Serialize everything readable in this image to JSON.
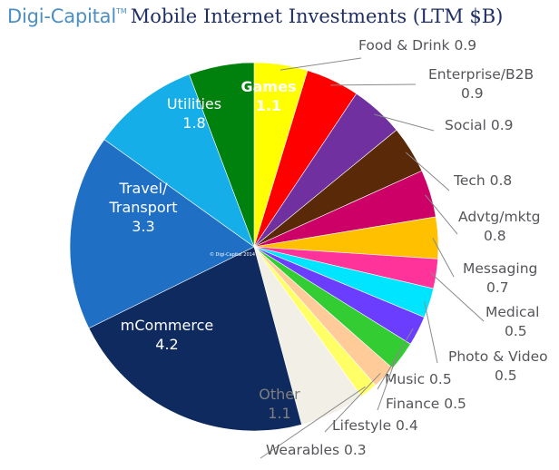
{
  "header": {
    "brand": "Digi-Capital",
    "trademark": "TM",
    "title": "Mobile Internet Investments (LTM $B)"
  },
  "watermark": "© Digi-Capital 2014",
  "chart_data": {
    "type": "pie",
    "title": "Mobile Internet Investments (LTM $B)",
    "start_angle_deg": 0,
    "direction": "clockwise",
    "slices": [
      {
        "label": "Food & Drink",
        "value": 0.9,
        "color": "#ffff00",
        "label_placement": "outside"
      },
      {
        "label": "Enterprise/B2B",
        "value": 0.9,
        "color": "#ff0000",
        "label_placement": "outside"
      },
      {
        "label": "Social",
        "value": 0.9,
        "color": "#7030a0",
        "label_placement": "outside"
      },
      {
        "label": "Tech",
        "value": 0.8,
        "color": "#5a2a08",
        "label_placement": "outside"
      },
      {
        "label": "Advtg/mktg",
        "value": 0.8,
        "color": "#cc0066",
        "label_placement": "outside"
      },
      {
        "label": "Messaging",
        "value": 0.7,
        "color": "#ffc000",
        "label_placement": "outside"
      },
      {
        "label": "Medical",
        "value": 0.5,
        "color": "#ff3399",
        "label_placement": "outside"
      },
      {
        "label": "Photo & Video",
        "value": 0.5,
        "color": "#00e5ff",
        "label_placement": "outside"
      },
      {
        "label": "Music",
        "value": 0.5,
        "color": "#6a3dff",
        "label_placement": "outside"
      },
      {
        "label": "Finance",
        "value": 0.5,
        "color": "#33cc33",
        "label_placement": "outside"
      },
      {
        "label": "Lifestyle",
        "value": 0.4,
        "color": "#ffcc99",
        "label_placement": "outside"
      },
      {
        "label": "Wearables",
        "value": 0.3,
        "color": "#ffff66",
        "label_placement": "outside"
      },
      {
        "label": "Other",
        "value": 1.1,
        "color": "#f2f0e6",
        "label_placement": "inside",
        "text_color": "#7f7f7f"
      },
      {
        "label": "mCommerce",
        "value": 4.2,
        "color": "#0f2a5e",
        "label_placement": "inside",
        "text_color": "#ffffff"
      },
      {
        "label": "Travel/ Transport",
        "value": 3.3,
        "color": "#1f6fc4",
        "label_placement": "inside",
        "text_color": "#ffffff"
      },
      {
        "label": "Utilities",
        "value": 1.8,
        "color": "#15aee8",
        "label_placement": "inside",
        "text_color": "#ffffff"
      },
      {
        "label": "Games",
        "value": 1.1,
        "color": "#00800d",
        "label_placement": "inside",
        "text_color": "#ffffff"
      }
    ]
  }
}
